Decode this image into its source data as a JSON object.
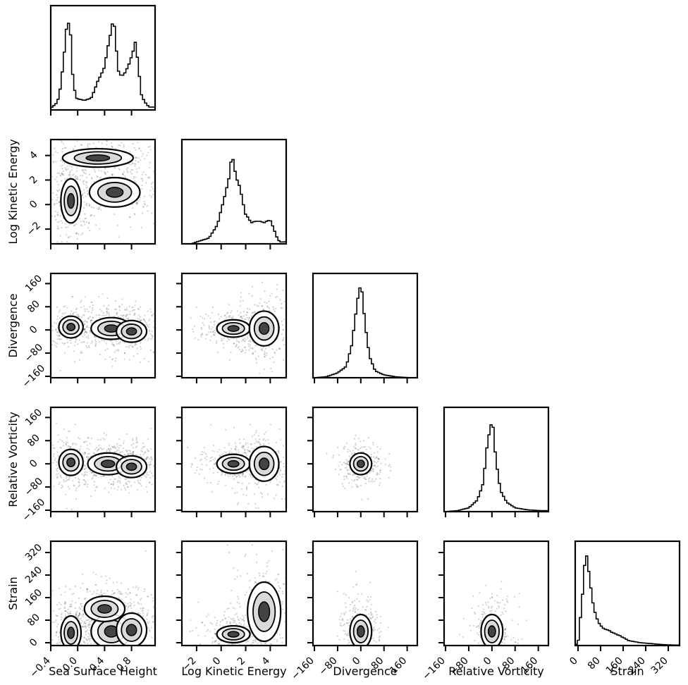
{
  "chart_data": {
    "type": "corner",
    "variables": [
      {
        "key": "ssh",
        "label": "Sea Surface Height",
        "range": [
          -0.4,
          1.15
        ],
        "ticks": [
          -0.4,
          0.0,
          0.4,
          0.8
        ],
        "tick_labels": [
          "−0.4",
          "0.0",
          "0.4",
          "0.8"
        ]
      },
      {
        "key": "lke",
        "label": "Log Kinetic Energy",
        "range": [
          -3.2,
          5.3
        ],
        "ticks": [
          -2,
          0,
          2,
          4
        ],
        "tick_labels": [
          "−2",
          "0",
          "2",
          "4"
        ]
      },
      {
        "key": "div",
        "label": "Divergence",
        "range": [
          -165,
          195
        ],
        "ticks": [
          -160,
          -80,
          0,
          80,
          160
        ],
        "tick_labels": [
          "−160",
          "−80",
          "0",
          "80",
          "160"
        ]
      },
      {
        "key": "vort",
        "label": "Relative Vorticity",
        "range": [
          -165,
          195
        ],
        "ticks": [
          -160,
          -80,
          0,
          80,
          160
        ],
        "tick_labels": [
          "−160",
          "−80",
          "0",
          "80",
          "160"
        ]
      },
      {
        "key": "strain",
        "label": "Strain",
        "range": [
          -10,
          360
        ],
        "ticks": [
          0,
          80,
          160,
          240,
          320
        ],
        "tick_labels": [
          "0",
          "80",
          "160",
          "240",
          "320"
        ]
      }
    ],
    "histograms": [
      {
        "var": "ssh",
        "points": [
          [
            -0.38,
            0.03
          ],
          [
            -0.3,
            0.08
          ],
          [
            -0.25,
            0.25
          ],
          [
            -0.2,
            0.6
          ],
          [
            -0.15,
            0.95
          ],
          [
            -0.1,
            0.75
          ],
          [
            -0.07,
            0.3
          ],
          [
            -0.02,
            0.12
          ],
          [
            0.1,
            0.1
          ],
          [
            0.2,
            0.12
          ],
          [
            0.3,
            0.3
          ],
          [
            0.4,
            0.45
          ],
          [
            0.45,
            0.65
          ],
          [
            0.52,
            0.92
          ],
          [
            0.55,
            0.85
          ],
          [
            0.6,
            0.42
          ],
          [
            0.65,
            0.35
          ],
          [
            0.72,
            0.4
          ],
          [
            0.8,
            0.55
          ],
          [
            0.86,
            0.72
          ],
          [
            0.9,
            0.45
          ],
          [
            0.95,
            0.15
          ],
          [
            1.0,
            0.08
          ],
          [
            1.06,
            0.03
          ]
        ]
      },
      {
        "var": "lke",
        "points": [
          [
            -2.0,
            0.02
          ],
          [
            -1.0,
            0.06
          ],
          [
            -0.3,
            0.2
          ],
          [
            0.2,
            0.45
          ],
          [
            0.6,
            0.65
          ],
          [
            0.9,
            0.95
          ],
          [
            1.2,
            0.7
          ],
          [
            1.5,
            0.6
          ],
          [
            2.0,
            0.3
          ],
          [
            2.5,
            0.22
          ],
          [
            3.0,
            0.24
          ],
          [
            3.5,
            0.22
          ],
          [
            4.0,
            0.25
          ],
          [
            4.3,
            0.15
          ],
          [
            4.6,
            0.05
          ],
          [
            4.8,
            0.02
          ]
        ]
      },
      {
        "var": "div",
        "points": [
          [
            -160,
            0.0
          ],
          [
            -120,
            0.01
          ],
          [
            -80,
            0.05
          ],
          [
            -50,
            0.12
          ],
          [
            -30,
            0.35
          ],
          [
            -15,
            0.72
          ],
          [
            -5,
            0.92
          ],
          [
            0,
            0.98
          ],
          [
            5,
            0.9
          ],
          [
            15,
            0.55
          ],
          [
            30,
            0.22
          ],
          [
            50,
            0.07
          ],
          [
            80,
            0.03
          ],
          [
            120,
            0.01
          ],
          [
            170,
            0.0
          ]
        ]
      },
      {
        "var": "vort",
        "points": [
          [
            -160,
            0.0
          ],
          [
            -120,
            0.01
          ],
          [
            -80,
            0.04
          ],
          [
            -50,
            0.12
          ],
          [
            -30,
            0.3
          ],
          [
            -15,
            0.72
          ],
          [
            -5,
            0.9
          ],
          [
            0,
            0.95
          ],
          [
            5,
            0.85
          ],
          [
            15,
            0.5
          ],
          [
            30,
            0.22
          ],
          [
            50,
            0.1
          ],
          [
            80,
            0.04
          ],
          [
            120,
            0.02
          ],
          [
            170,
            0.01
          ]
        ]
      },
      {
        "var": "strain",
        "points": [
          [
            0,
            0.02
          ],
          [
            15,
            0.5
          ],
          [
            25,
            0.9
          ],
          [
            32,
            0.95
          ],
          [
            40,
            0.7
          ],
          [
            55,
            0.4
          ],
          [
            70,
            0.25
          ],
          [
            90,
            0.18
          ],
          [
            120,
            0.14
          ],
          [
            150,
            0.1
          ],
          [
            180,
            0.05
          ],
          [
            220,
            0.03
          ],
          [
            260,
            0.02
          ],
          [
            300,
            0.01
          ],
          [
            340,
            0.005
          ]
        ]
      }
    ],
    "pairs": [
      {
        "x": "ssh",
        "y": "lke",
        "clusters": [
          [
            -0.1,
            0.3,
            0.1,
            1.2
          ],
          [
            0.55,
            1.0,
            0.25,
            0.8
          ],
          [
            0.3,
            3.8,
            0.35,
            0.5
          ]
        ]
      },
      {
        "x": "ssh",
        "y": "div",
        "clusters": [
          [
            -0.1,
            10,
            0.12,
            25
          ],
          [
            0.5,
            5,
            0.2,
            25
          ],
          [
            0.8,
            -5,
            0.15,
            25
          ]
        ]
      },
      {
        "x": "ssh",
        "y": "vort",
        "clusters": [
          [
            -0.1,
            5,
            0.12,
            30
          ],
          [
            0.45,
            0,
            0.2,
            25
          ],
          [
            0.8,
            -10,
            0.15,
            25
          ]
        ]
      },
      {
        "x": "ssh",
        "y": "strain",
        "clusters": [
          [
            -0.1,
            35,
            0.1,
            40
          ],
          [
            0.5,
            40,
            0.2,
            40
          ],
          [
            0.8,
            45,
            0.15,
            40
          ],
          [
            0.4,
            120,
            0.2,
            30
          ]
        ]
      },
      {
        "x": "lke",
        "y": "div",
        "clusters": [
          [
            1.0,
            5,
            0.9,
            20
          ],
          [
            3.5,
            5,
            0.8,
            40
          ]
        ]
      },
      {
        "x": "lke",
        "y": "vort",
        "clusters": [
          [
            1.0,
            0,
            0.9,
            22
          ],
          [
            3.5,
            0,
            0.8,
            40
          ]
        ]
      },
      {
        "x": "lke",
        "y": "strain",
        "clusters": [
          [
            1.0,
            30,
            0.9,
            20
          ],
          [
            3.5,
            110,
            0.9,
            70
          ]
        ]
      },
      {
        "x": "div",
        "y": "vort",
        "clusters": [
          [
            0,
            0,
            25,
            25
          ]
        ]
      },
      {
        "x": "div",
        "y": "strain",
        "clusters": [
          [
            0,
            40,
            25,
            40
          ]
        ]
      },
      {
        "x": "vort",
        "y": "strain",
        "clusters": [
          [
            0,
            40,
            25,
            40
          ]
        ]
      }
    ]
  }
}
